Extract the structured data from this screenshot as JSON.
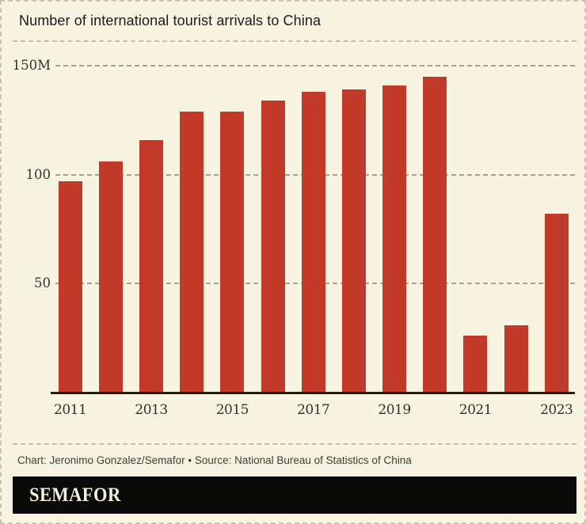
{
  "header": {
    "title": "Number of international tourist arrivals to China"
  },
  "footer": {
    "credit": "Chart: Jeronimo Gonzalez/Semafor",
    "source": "Source: National Bureau of Statistics of China",
    "full_text": "Chart: Jeronimo Gonzalez/Semafor • Source: National Bureau of Statistics of China"
  },
  "logo": {
    "text": "SEMAFOR"
  },
  "colors": {
    "background": "#f8f4e2",
    "bar": "#c23b2a",
    "axis": "#2a1b10",
    "gridline": "#a6a295",
    "logo_background": "#0a0a08",
    "logo_text": "#f5efdb"
  },
  "chart_data": {
    "type": "bar",
    "title": "Number of international tourist arrivals to China",
    "xlabel": "",
    "ylabel": "",
    "unit": "millions of arrivals",
    "categories": [
      2011,
      2012,
      2013,
      2014,
      2015,
      2016,
      2017,
      2018,
      2019,
      2020,
      2021,
      2022,
      2023
    ],
    "values": [
      97,
      106,
      116,
      129,
      129,
      134,
      138,
      139,
      141,
      145,
      26,
      31,
      82
    ],
    "ylim": [
      0,
      160
    ],
    "yticks": [
      {
        "value": 150,
        "label": "150M"
      },
      {
        "value": 100,
        "label": "100"
      },
      {
        "value": 50,
        "label": "50"
      }
    ],
    "xtick_labels": [
      "2011",
      "2013",
      "2015",
      "2017",
      "2019",
      "2021",
      "2023"
    ],
    "grid": "horizontal-dashed",
    "legend": "none"
  }
}
